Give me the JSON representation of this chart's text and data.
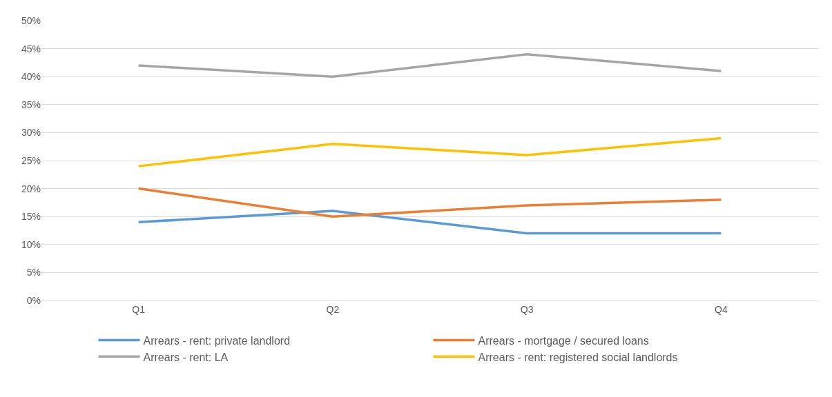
{
  "chart_data": {
    "type": "line",
    "categories": [
      "Q1",
      "Q2",
      "Q3",
      "Q4"
    ],
    "series": [
      {
        "name": "Arrears - rent: private landlord",
        "color": "#5b9bd5",
        "values": [
          14,
          16,
          12,
          12
        ]
      },
      {
        "name": "Arrears - mortgage / secured loans",
        "color": "#ed7d31",
        "values": [
          20,
          15,
          17,
          18
        ]
      },
      {
        "name": "Arrears - rent: LA",
        "color": "#a5a5a5",
        "values": [
          42,
          40,
          44,
          41
        ]
      },
      {
        "name": "Arrears - rent: registered social landlords",
        "color": "#ffc000",
        "values": [
          24,
          28,
          26,
          29
        ]
      }
    ],
    "ylim": [
      0,
      50
    ],
    "yticks": [
      {
        "value": 0,
        "label": "0%"
      },
      {
        "value": 5,
        "label": "5%"
      },
      {
        "value": 10,
        "label": "10%"
      },
      {
        "value": 15,
        "label": "15%"
      },
      {
        "value": 20,
        "label": "20%"
      },
      {
        "value": 25,
        "label": "25%"
      },
      {
        "value": 30,
        "label": "30%"
      },
      {
        "value": 35,
        "label": "35%"
      },
      {
        "value": 40,
        "label": "40%"
      },
      {
        "value": 45,
        "label": "45%"
      },
      {
        "value": 50,
        "label": "50%"
      }
    ],
    "grid": "y",
    "legend": "bottom",
    "marker": "none",
    "line_style": "solid"
  }
}
